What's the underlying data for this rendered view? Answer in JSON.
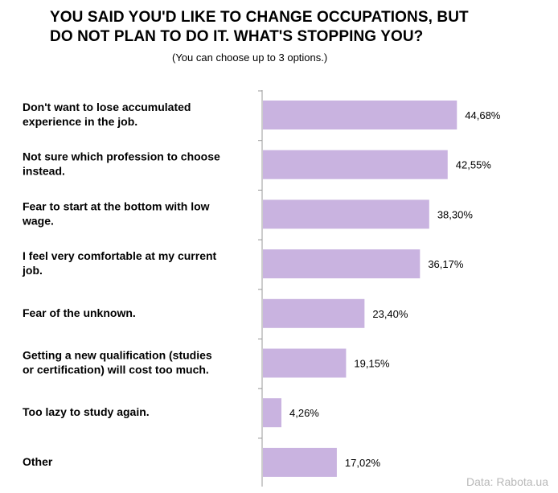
{
  "title": "YOU SAID YOU'D LIKE TO CHANGE OCCUPATIONS, BUT\nDO NOT PLAN TO DO IT. WHAT'S STOPPING YOU?",
  "subtitle": "(You can choose up to 3 options.)",
  "footer": "Data: Rabota.ua",
  "colors": {
    "bar": "#c9b3e0",
    "axis": "#999999"
  },
  "chart_data": {
    "type": "bar",
    "orientation": "horizontal",
    "categories": [
      "Don't want to lose accumulated\nexperience in the job.",
      "Not sure which profession to choose\ninstead.",
      "Fear to start at the bottom with low\nwage.",
      "I feel very comfortable at my current\njob.",
      "Fear of the unknown.",
      "Getting a new qualification (studies\nor certification) will cost too much.",
      "Too lazy to study again.",
      "Other"
    ],
    "values": [
      44.68,
      42.55,
      38.3,
      36.17,
      23.4,
      19.15,
      4.26,
      17.02
    ],
    "value_labels": [
      "44,68%",
      "42,55%",
      "38,30%",
      "36,17%",
      "23,40%",
      "19,15%",
      "4,26%",
      "17,02%"
    ],
    "xlim": [
      0,
      50
    ],
    "grid": false,
    "legend": "none"
  }
}
